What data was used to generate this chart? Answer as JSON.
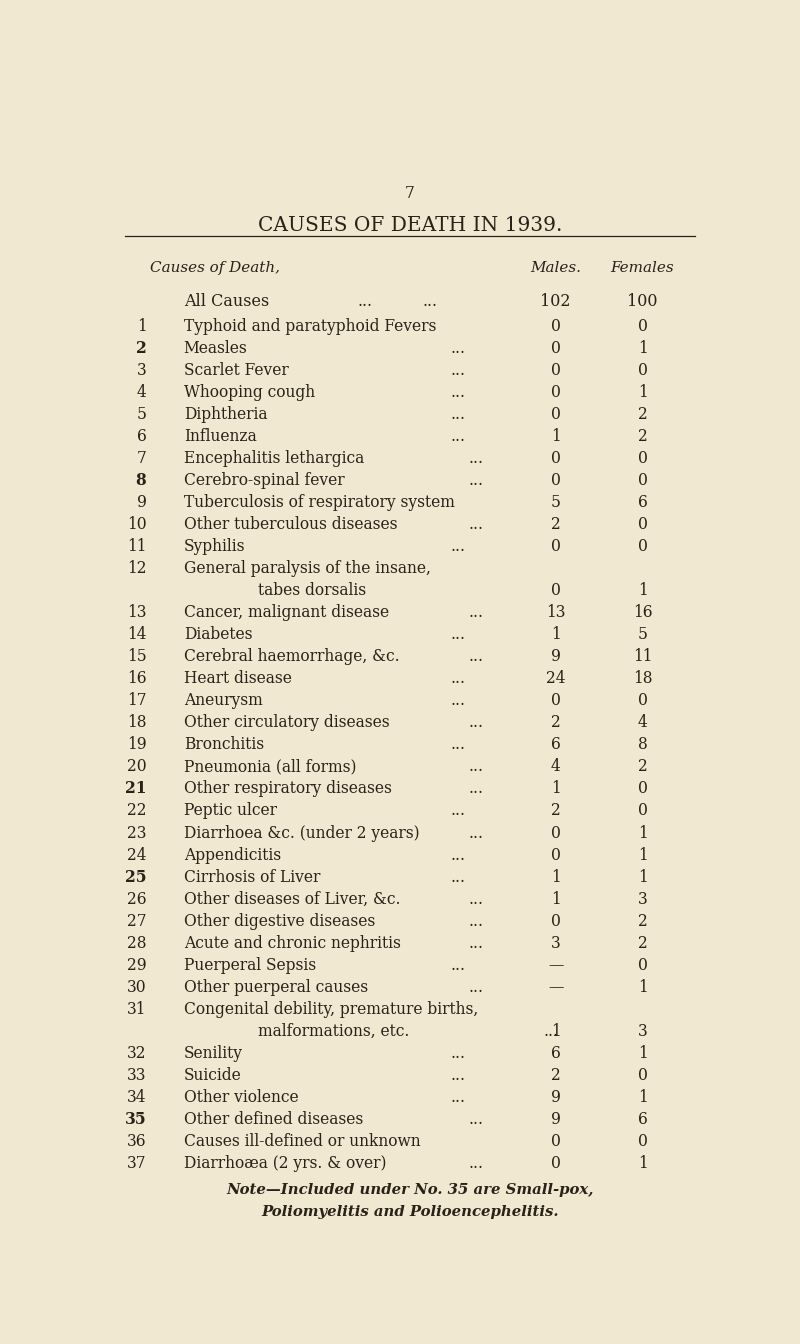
{
  "page_number": "7",
  "title": "CAUSES OF DEATH IN 1939.",
  "col_header_left": "Causes of Death,",
  "col_header_males": "Males.",
  "col_header_females": "Females",
  "all_causes_label": "All Causes",
  "all_causes_males": "102",
  "all_causes_females": "100",
  "rows": [
    {
      "num": "1",
      "bold": false,
      "cause": "Typhoid and paratyphoid Fevers",
      "dots": "",
      "males": "0",
      "females": "0"
    },
    {
      "num": "2",
      "bold": true,
      "cause": "Measles",
      "dots": "...",
      "males": "0",
      "females": "1"
    },
    {
      "num": "3",
      "bold": false,
      "cause": "Scarlet Fever",
      "dots": "...",
      "males": "0",
      "females": "0"
    },
    {
      "num": "4",
      "bold": false,
      "cause": "Whooping cough",
      "dots": "...",
      "males": "0",
      "females": "1"
    },
    {
      "num": "5",
      "bold": false,
      "cause": "Diphtheria",
      "dots": "...",
      "males": "0",
      "females": "2"
    },
    {
      "num": "6",
      "bold": false,
      "cause": "Influenza",
      "dots": "...",
      "males": "1",
      "females": "2"
    },
    {
      "num": "7",
      "bold": false,
      "cause": "Encephalitis lethargica",
      "dots": "...",
      "males": "0",
      "females": "0"
    },
    {
      "num": "8",
      "bold": true,
      "cause": "Cerebro-spinal fever",
      "dots": "...",
      "males": "0",
      "females": "0"
    },
    {
      "num": "9",
      "bold": false,
      "cause": "Tuberculosis of respiratory system",
      "dots": "",
      "males": "5",
      "females": "6"
    },
    {
      "num": "10",
      "bold": false,
      "cause": "Other tuberculous diseases",
      "dots": "...",
      "males": "2",
      "females": "0"
    },
    {
      "num": "11",
      "bold": false,
      "cause": "Syphilis",
      "dots": "...",
      "males": "0",
      "females": "0"
    },
    {
      "num": "12",
      "bold": false,
      "cause": "General paralysis of the insane,",
      "dots": "",
      "males": "",
      "females": "",
      "line2": "tabes dorsalis",
      "dots2": "",
      "males2": "0",
      "females2": "1"
    },
    {
      "num": "13",
      "bold": false,
      "cause": "Cancer, malignant disease",
      "dots": "...",
      "males": "13",
      "females": "16"
    },
    {
      "num": "14",
      "bold": false,
      "cause": "Diabetes",
      "dots": "...",
      "males": "1",
      "females": "5"
    },
    {
      "num": "15",
      "bold": false,
      "cause": "Cerebral haemorrhage, &c.",
      "dots": "...",
      "males": "9",
      "females": "11"
    },
    {
      "num": "16",
      "bold": false,
      "cause": "Heart disease",
      "dots": "...",
      "males": "24",
      "females": "18"
    },
    {
      "num": "17",
      "bold": false,
      "cause": "Aneurysm",
      "dots": "...",
      "males": "0",
      "females": "0"
    },
    {
      "num": "18",
      "bold": false,
      "cause": "Other circulatory diseases",
      "dots": "...",
      "males": "2",
      "females": "4"
    },
    {
      "num": "19",
      "bold": false,
      "cause": "Bronchitis",
      "dots": "...",
      "males": "6",
      "females": "8"
    },
    {
      "num": "20",
      "bold": false,
      "cause": "Pneumonia (all forms)",
      "dots": "...",
      "males": "4",
      "females": "2"
    },
    {
      "num": "21",
      "bold": true,
      "cause": "Other respiratory diseases",
      "dots": "...",
      "males": "1",
      "females": "0"
    },
    {
      "num": "22",
      "bold": false,
      "cause": "Peptic ulcer",
      "dots": "...",
      "males": "2",
      "females": "0"
    },
    {
      "num": "23",
      "bold": false,
      "cause": "Diarrhoea &c. (under 2 years)",
      "dots": "...",
      "males": "0",
      "females": "1"
    },
    {
      "num": "24",
      "bold": false,
      "cause": "Appendicitis",
      "dots": "...",
      "males": "0",
      "females": "1"
    },
    {
      "num": "25",
      "bold": true,
      "cause": "Cirrhosis of Liver",
      "dots": "...",
      "males": "1",
      "females": "1"
    },
    {
      "num": "26",
      "bold": false,
      "cause": "Other diseases of Liver, &c.",
      "dots": "...",
      "males": "1",
      "females": "3"
    },
    {
      "num": "27",
      "bold": false,
      "cause": "Other digestive diseases",
      "dots": "...",
      "males": "0",
      "females": "2"
    },
    {
      "num": "28",
      "bold": false,
      "cause": "Acute and chronic nephritis",
      "dots": "...",
      "males": "3",
      "females": "2"
    },
    {
      "num": "29",
      "bold": false,
      "cause": "Puerperal Sepsis",
      "dots": "...",
      "males": "—",
      "females": "0"
    },
    {
      "num": "30",
      "bold": false,
      "cause": "Other puerperal causes",
      "dots": "...",
      "males": "—",
      "females": "1"
    },
    {
      "num": "31",
      "bold": false,
      "cause": "Congenital debility, premature births,",
      "dots": "",
      "males": "",
      "females": "",
      "line2": "malformations, etc.",
      "dots2": "...",
      "males2": "1",
      "females2": "3"
    },
    {
      "num": "32",
      "bold": false,
      "cause": "Senility",
      "dots": "...",
      "males": "6",
      "females": "1"
    },
    {
      "num": "33",
      "bold": false,
      "cause": "Suicide",
      "dots": "...",
      "males": "2",
      "females": "0"
    },
    {
      "num": "34",
      "bold": false,
      "cause": "Other violence",
      "dots": "...",
      "males": "9",
      "females": "1"
    },
    {
      "num": "35",
      "bold": true,
      "cause": "Other defined diseases",
      "dots": "...",
      "males": "9",
      "females": "6"
    },
    {
      "num": "36",
      "bold": false,
      "cause": "Causes ill-defined or unknown",
      "dots": "",
      "males": "0",
      "females": "0"
    },
    {
      "num": "37",
      "bold": false,
      "cause": "Diarrhoæa (2 yrs. & over)",
      "dots": "...",
      "males": "0",
      "females": "1"
    }
  ],
  "note_line1": "Note—Included under No. 35 are Small-pox,",
  "note_line2": "Poliomyelitis and Polioencephelitis.",
  "bg_color": "#f0e8d0",
  "text_color": "#2a2218",
  "font_size": 11.2,
  "title_font_size": 14.5
}
